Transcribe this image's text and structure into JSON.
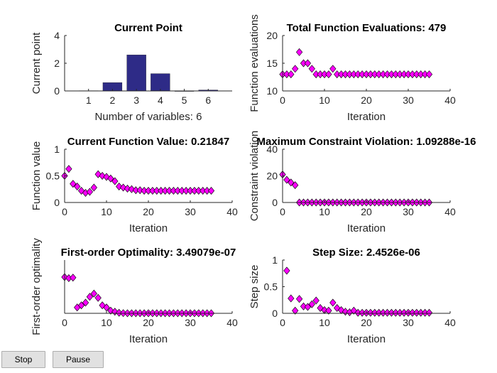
{
  "colors": {
    "bar": "#2E2B87",
    "marker_fill": "#FF00FF",
    "marker_edge": "#000000",
    "axis": "#262626"
  },
  "chart_data": [
    {
      "type": "bar",
      "title": "Current Point",
      "xlabel": "Number of variables: 6",
      "ylabel": "Current point",
      "categories": [
        "1",
        "2",
        "3",
        "4",
        "5",
        "6"
      ],
      "values": [
        0.02,
        0.6,
        2.6,
        1.25,
        0.0,
        0.07
      ],
      "xlim": [
        0,
        7
      ],
      "ylim": [
        0,
        4
      ],
      "xticks": [
        "1",
        "2",
        "3",
        "4",
        "5",
        "6"
      ],
      "yticks": [
        "0",
        "2",
        "4"
      ]
    },
    {
      "type": "scatter",
      "title": "Total Function Evaluations: 479",
      "xlabel": "Iteration",
      "ylabel": "Function evaluations",
      "x": [
        0,
        1,
        2,
        3,
        4,
        5,
        6,
        7,
        8,
        9,
        10,
        11,
        12,
        13,
        14,
        15,
        16,
        17,
        18,
        19,
        20,
        21,
        22,
        23,
        24,
        25,
        26,
        27,
        28,
        29,
        30,
        31,
        32,
        33,
        34,
        35
      ],
      "y": [
        13,
        13,
        13,
        14,
        17,
        15,
        15,
        14,
        13,
        13,
        13,
        13,
        14,
        13,
        13,
        13,
        13,
        13,
        13,
        13,
        13,
        13,
        13,
        13,
        13,
        13,
        13,
        13,
        13,
        13,
        13,
        13,
        13,
        13,
        13,
        13
      ],
      "xlim": [
        0,
        40
      ],
      "ylim": [
        10,
        20
      ],
      "xticks": [
        "0",
        "10",
        "20",
        "30",
        "40"
      ],
      "yticks": [
        "10",
        "15",
        "20"
      ]
    },
    {
      "type": "scatter",
      "title": "Current Function Value: 0.21847",
      "xlabel": "Iteration",
      "ylabel": "Function value",
      "x": [
        0,
        1,
        2,
        3,
        4,
        5,
        6,
        7,
        8,
        9,
        10,
        11,
        12,
        13,
        14,
        15,
        16,
        17,
        18,
        19,
        20,
        21,
        22,
        23,
        24,
        25,
        26,
        27,
        28,
        29,
        30,
        31,
        32,
        33,
        34,
        35
      ],
      "y": [
        0.5,
        0.63,
        0.35,
        0.3,
        0.22,
        0.18,
        0.2,
        0.28,
        0.53,
        0.5,
        0.48,
        0.45,
        0.4,
        0.3,
        0.28,
        0.26,
        0.25,
        0.23,
        0.23,
        0.22,
        0.22,
        0.22,
        0.22,
        0.22,
        0.22,
        0.22,
        0.22,
        0.22,
        0.22,
        0.22,
        0.22,
        0.22,
        0.22,
        0.22,
        0.22,
        0.22
      ],
      "xlim": [
        0,
        40
      ],
      "ylim": [
        0,
        1
      ],
      "xticks": [
        "0",
        "10",
        "20",
        "30",
        "40"
      ],
      "yticks": [
        "0",
        "0.5",
        "1"
      ]
    },
    {
      "type": "scatter",
      "title": "Maximum Constraint Violation: 1.09288e-16",
      "xlabel": "Iteration",
      "ylabel": "Constraint violation",
      "x": [
        0,
        1,
        2,
        3,
        4,
        5,
        6,
        7,
        8,
        9,
        10,
        11,
        12,
        13,
        14,
        15,
        16,
        17,
        18,
        19,
        20,
        21,
        22,
        23,
        24,
        25,
        26,
        27,
        28,
        29,
        30,
        31,
        32,
        33,
        34,
        35
      ],
      "y": [
        21,
        17,
        15,
        13,
        0,
        0,
        0,
        0,
        0,
        0,
        0,
        0,
        0,
        0,
        0,
        0,
        0,
        0,
        0,
        0,
        0,
        0,
        0,
        0,
        0,
        0,
        0,
        0,
        0,
        0,
        0,
        0,
        0,
        0,
        0,
        0
      ],
      "xlim": [
        0,
        40
      ],
      "ylim": [
        0,
        40
      ],
      "xticks": [
        "0",
        "10",
        "20",
        "30",
        "40"
      ],
      "yticks": [
        "0",
        "20",
        "40"
      ]
    },
    {
      "type": "scatter",
      "title": "First-order Optimality: 3.49079e-07",
      "xlabel": "Iteration",
      "ylabel": "First-order optimality",
      "x": [
        0,
        1,
        2,
        3,
        4,
        5,
        6,
        7,
        8,
        9,
        10,
        11,
        12,
        13,
        14,
        15,
        16,
        17,
        18,
        19,
        20,
        21,
        22,
        23,
        24,
        25,
        26,
        27,
        28,
        29,
        30,
        31,
        32,
        33,
        34,
        35
      ],
      "y": [
        3.4,
        3.3,
        3.35,
        0.55,
        0.75,
        1.0,
        1.55,
        1.85,
        1.45,
        0.75,
        0.55,
        0.25,
        0.15,
        0.05,
        0.02,
        0.01,
        0.01,
        0.01,
        0.01,
        0.01,
        0.01,
        0.01,
        0.01,
        0.01,
        0.01,
        0.01,
        0.01,
        0.01,
        0.01,
        0.01,
        0.01,
        0.01,
        0.01,
        0.01,
        0.01,
        0.01
      ],
      "xlim": [
        0,
        40
      ],
      "ylim": [
        0,
        5
      ],
      "xticks": [
        "0",
        "10",
        "20",
        "30",
        "40"
      ],
      "yticks": []
    },
    {
      "type": "scatter",
      "title": "Step Size: 2.4526e-06",
      "xlabel": "Iteration",
      "ylabel": "Step size",
      "x": [
        1,
        2,
        3,
        4,
        5,
        6,
        7,
        8,
        9,
        10,
        11,
        12,
        13,
        14,
        15,
        16,
        17,
        18,
        19,
        20,
        21,
        22,
        23,
        24,
        25,
        26,
        27,
        28,
        29,
        30,
        31,
        32,
        33,
        34,
        35
      ],
      "y": [
        0.8,
        0.28,
        0.05,
        0.27,
        0.13,
        0.12,
        0.17,
        0.24,
        0.1,
        0.06,
        0.05,
        0.2,
        0.1,
        0.06,
        0.03,
        0.02,
        0.05,
        0.01,
        0.01,
        0.01,
        0.01,
        0.01,
        0.01,
        0.01,
        0.01,
        0.01,
        0.01,
        0.01,
        0.01,
        0.01,
        0.01,
        0.01,
        0.01,
        0.01,
        0.01
      ],
      "xlim": [
        0,
        40
      ],
      "ylim": [
        0,
        1
      ],
      "xticks": [
        "0",
        "10",
        "20",
        "30",
        "40"
      ],
      "yticks": [
        "0",
        "0.5",
        "1"
      ]
    }
  ],
  "buttons": {
    "stop_label": "Stop",
    "pause_label": "Pause"
  }
}
